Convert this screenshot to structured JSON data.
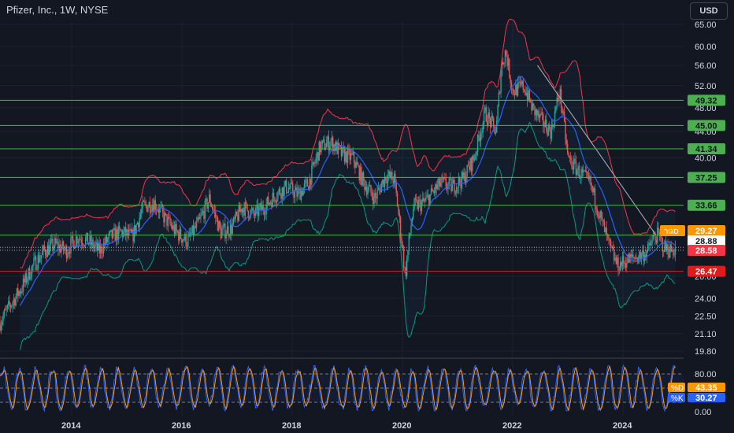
{
  "header": {
    "title": "Pfizer, Inc., 1W, NYSE",
    "currency_button": "USD"
  },
  "colors": {
    "background": "#131722",
    "text": "#d1d4dc",
    "grid": "#1e222d",
    "candle_up": "#26a69a",
    "candle_down": "#ef5350",
    "level_line": "#3fbf3f",
    "level_support": "#e11b1b",
    "basis": "#2962ff",
    "upper_band": "#f23645",
    "lower_band": "#089981",
    "stoch_k": "#2962ff",
    "stoch_d": "#ff9800"
  },
  "chart_data": [
    {
      "type": "candlestick",
      "title": "Pfizer, Inc., 1W, NYSE",
      "y_scale": "log",
      "ylim": [
        20.5,
        63
      ],
      "x_range": [
        2012.8,
        2025.2
      ],
      "x_ticks": [
        "2014",
        "2016",
        "2018",
        "2020",
        "2022",
        "2024"
      ],
      "y_ticks": [
        "65.00",
        "60.00",
        "56.00",
        "52.00",
        "48.00",
        "44.00",
        "40.00",
        "37.25",
        "33.66",
        "30.20",
        "26.00",
        "24.00",
        "22.50",
        "21.10",
        "19.80"
      ],
      "price_path": [
        [
          2012.8,
          22.0
        ],
        [
          2013.0,
          23.5
        ],
        [
          2013.2,
          25.0
        ],
        [
          2013.4,
          27.0
        ],
        [
          2013.6,
          28.5
        ],
        [
          2013.8,
          29.2
        ],
        [
          2014.0,
          28.5
        ],
        [
          2014.2,
          30.0
        ],
        [
          2014.4,
          29.5
        ],
        [
          2014.6,
          28.5
        ],
        [
          2014.8,
          30.0
        ],
        [
          2015.0,
          30.5
        ],
        [
          2015.2,
          30.0
        ],
        [
          2015.4,
          33.5
        ],
        [
          2015.6,
          34.0
        ],
        [
          2015.8,
          32.0
        ],
        [
          2016.0,
          30.5
        ],
        [
          2016.2,
          29.5
        ],
        [
          2016.4,
          31.5
        ],
        [
          2016.6,
          34.5
        ],
        [
          2016.8,
          30.5
        ],
        [
          2017.0,
          31.0
        ],
        [
          2017.2,
          33.5
        ],
        [
          2017.4,
          32.5
        ],
        [
          2017.6,
          33.5
        ],
        [
          2017.8,
          35.0
        ],
        [
          2018.0,
          36.0
        ],
        [
          2018.2,
          35.0
        ],
        [
          2018.4,
          36.5
        ],
        [
          2018.6,
          41.5
        ],
        [
          2018.8,
          42.5
        ],
        [
          2019.0,
          40.5
        ],
        [
          2019.2,
          40.0
        ],
        [
          2019.4,
          36.5
        ],
        [
          2019.6,
          34.5
        ],
        [
          2019.8,
          37.5
        ],
        [
          2019.95,
          37.0
        ],
        [
          2020.15,
          26.0
        ],
        [
          2020.3,
          33.5
        ],
        [
          2020.5,
          34.0
        ],
        [
          2020.8,
          36.5
        ],
        [
          2021.0,
          36.0
        ],
        [
          2021.2,
          37.0
        ],
        [
          2021.4,
          40.0
        ],
        [
          2021.6,
          47.0
        ],
        [
          2021.8,
          44.0
        ],
        [
          2021.9,
          56.0
        ],
        [
          2021.97,
          59.0
        ],
        [
          2022.1,
          51.0
        ],
        [
          2022.3,
          52.0
        ],
        [
          2022.45,
          48.0
        ],
        [
          2022.6,
          46.0
        ],
        [
          2022.8,
          44.0
        ],
        [
          2022.95,
          51.0
        ],
        [
          2023.1,
          40.0
        ],
        [
          2023.3,
          38.0
        ],
        [
          2023.5,
          36.5
        ],
        [
          2023.7,
          32.0
        ],
        [
          2023.85,
          29.0
        ],
        [
          2024.0,
          27.0
        ],
        [
          2024.15,
          27.5
        ],
        [
          2024.4,
          28.0
        ],
        [
          2024.55,
          28.5
        ],
        [
          2024.65,
          29.8
        ],
        [
          2024.72,
          30.2
        ],
        [
          2024.85,
          28.9
        ],
        [
          2025.0,
          28.5
        ],
        [
          2025.05,
          28.88
        ]
      ],
      "horizontal_levels": [
        {
          "price": 49.32,
          "label": "49.32",
          "kind": "resistance"
        },
        {
          "price": 45.0,
          "label": "45.00",
          "kind": "resistance"
        },
        {
          "price": 41.34,
          "label": "41.34",
          "kind": "resistance"
        },
        {
          "price": 37.25,
          "label": "37.25",
          "kind": "resistance"
        },
        {
          "price": 33.66,
          "label": "33.66",
          "kind": "resistance"
        },
        {
          "price": 30.2,
          "label": "30.20",
          "kind": "resistance"
        },
        {
          "price": 26.47,
          "label": "26.47",
          "kind": "support"
        }
      ],
      "dotted_levels": [
        28.88,
        28.58
      ],
      "price_tags": [
        {
          "label": "29.27",
          "price": 29.27,
          "bg": "#ff9800",
          "fg": "#ffffff",
          "pill": "סגור"
        },
        {
          "label": "28.88",
          "price": 28.88,
          "bg": "#ffffff",
          "fg": "#131722"
        },
        {
          "label": "28.58",
          "price": 28.58,
          "bg": "#f23645",
          "fg": "#ffffff"
        }
      ],
      "indicators": [
        "Bollinger Bands"
      ],
      "trendline": {
        "from": [
          2022.55,
          56.0
        ],
        "to": [
          2024.7,
          30.2
        ]
      }
    },
    {
      "type": "line",
      "name": "Stochastic",
      "ylim": [
        0,
        100
      ],
      "y_ticks": [
        "80.00",
        "0.00"
      ],
      "levels": [
        80,
        50,
        20
      ],
      "series": [
        {
          "name": "%D",
          "value": "43.35",
          "color": "#ff9800"
        },
        {
          "name": "%K",
          "value": "30.27",
          "color": "#2962ff"
        }
      ]
    }
  ]
}
